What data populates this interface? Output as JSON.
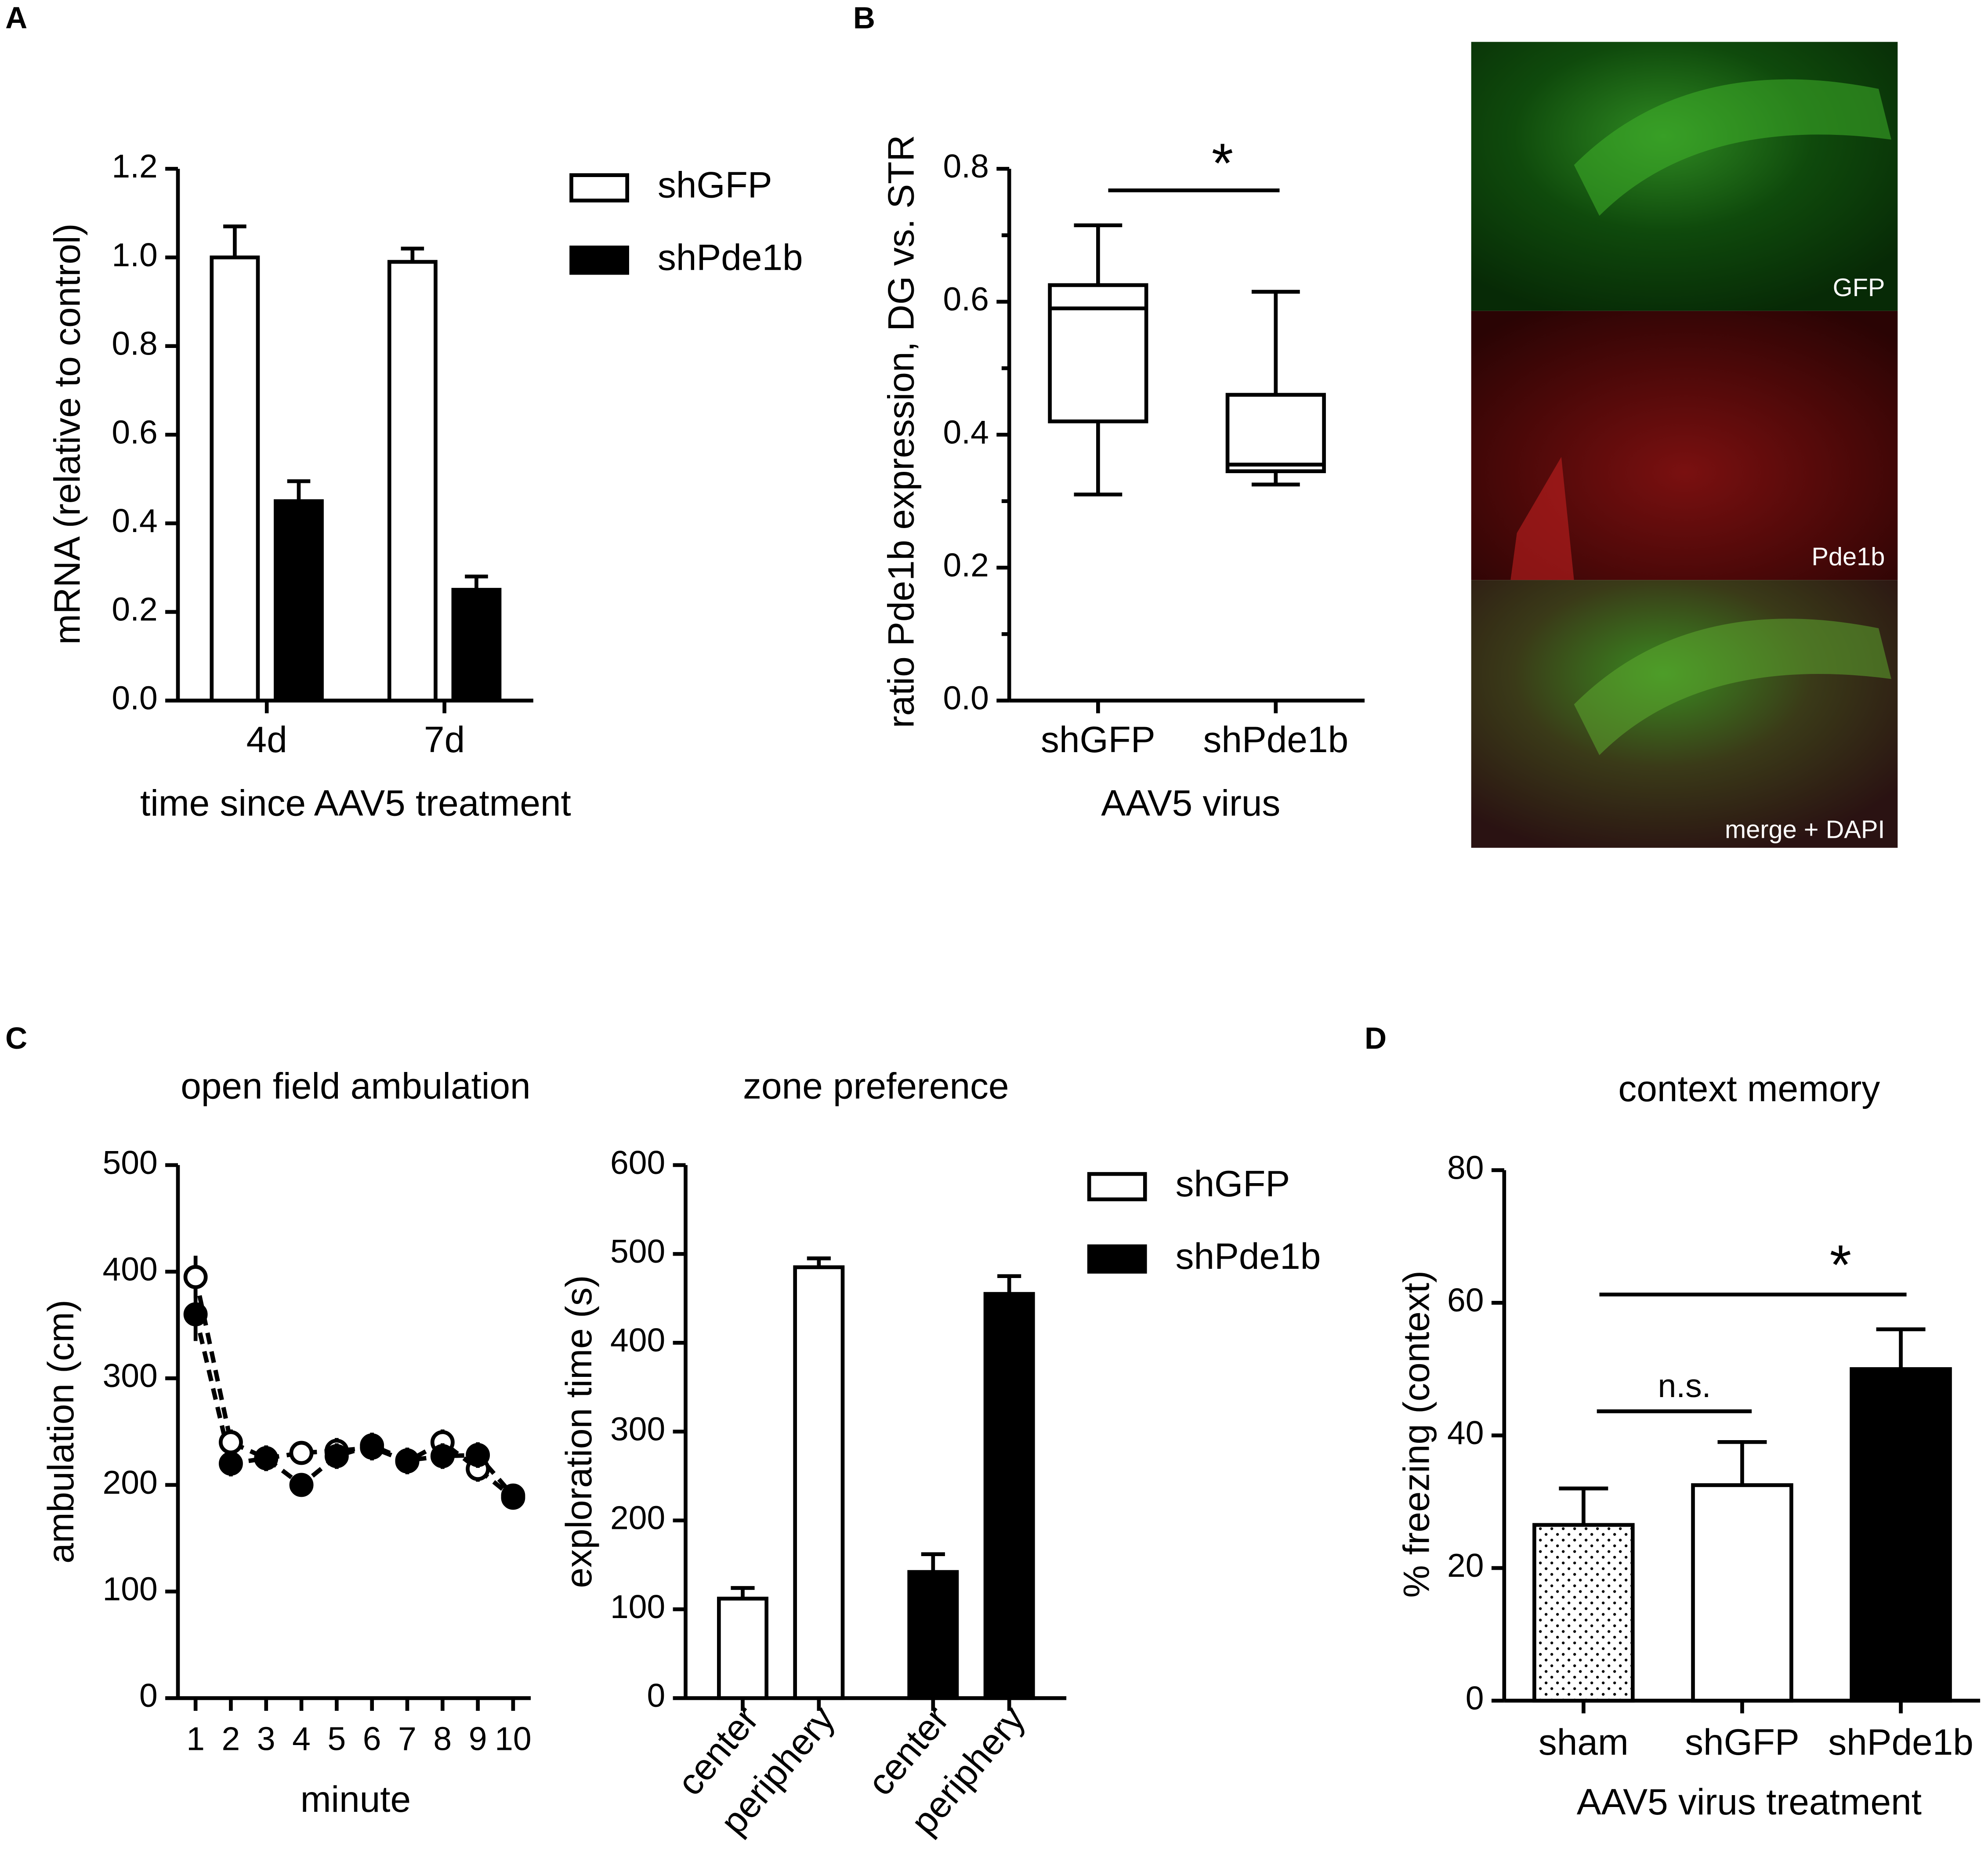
{
  "panel_labels": [
    "A",
    "B",
    "C",
    "D"
  ],
  "image_labels": [
    "GFP",
    "Pde1b",
    "merge + DAPI"
  ],
  "chart_data": [
    {
      "type": "bar",
      "categories": [
        "4d",
        "7d"
      ],
      "series": [
        {
          "name": "shGFP",
          "color": "#ffffff",
          "values": [
            1.0,
            0.99
          ],
          "errors": [
            0.07,
            0.03
          ]
        },
        {
          "name": "shPde1b",
          "color": "#000000",
          "values": [
            0.45,
            0.25
          ],
          "errors": [
            0.045,
            0.03
          ]
        }
      ],
      "ylim": [
        0,
        1.2
      ],
      "yticks": [
        {
          "value": 0,
          "label": "0.0"
        },
        0.2,
        0.4,
        0.6,
        0.8,
        {
          "value": 1,
          "label": "1.0"
        },
        1.2
      ],
      "y_label": "mRNA (relative to control)",
      "x_label": "time since AAV5 treatment",
      "legend": "right"
    },
    {
      "type": "box",
      "categories": [
        "shGFP",
        "shPde1b"
      ],
      "boxes": [
        {
          "min": 0.31,
          "q1": 0.42,
          "median": 0.59,
          "q3": 0.625,
          "max": 0.715
        },
        {
          "min": 0.325,
          "q1": 0.345,
          "median": 0.355,
          "q3": 0.46,
          "max": 0.615
        }
      ],
      "ylim": [
        0,
        0.8
      ],
      "yticks": [
        {
          "value": 0,
          "label": "0.0"
        },
        0.2,
        0.4,
        0.6,
        0.8
      ],
      "minor_yticks": [
        0.1,
        0.3,
        0.5,
        0.7
      ],
      "y_label": "ratio Pde1b expression, DG vs. STR",
      "x_label": "AAV5 virus",
      "annotations": [
        "*"
      ]
    },
    {
      "type": "line",
      "title": "open field ambulation",
      "x": [
        1,
        2,
        3,
        4,
        5,
        6,
        7,
        8,
        9,
        10
      ],
      "series": [
        {
          "name": "shGFP",
          "color": "#000000",
          "marker_fill": "#ffffff",
          "linestyle": "dashed",
          "values": [
            395,
            240,
            225,
            230,
            232,
            235,
            222,
            240,
            215,
            188
          ],
          "errors": [
            20,
            12,
            12,
            10,
            12,
            12,
            12,
            12,
            12,
            10
          ]
        },
        {
          "name": "shPde1b",
          "color": "#000000",
          "marker_fill": "#000000",
          "linestyle": "dashed",
          "values": [
            360,
            220,
            225,
            200,
            227,
            237,
            223,
            227,
            228,
            190
          ],
          "errors": [
            25,
            12,
            12,
            10,
            12,
            12,
            12,
            12,
            12,
            10
          ]
        }
      ],
      "xlim": [
        0.5,
        10.5
      ],
      "xticks": [
        1,
        2,
        3,
        4,
        5,
        6,
        7,
        8,
        9,
        10
      ],
      "ylim": [
        0,
        500
      ],
      "yticks": [
        0,
        100,
        200,
        300,
        400,
        500
      ],
      "x_label": "minute",
      "y_label": "ambulation (cm)"
    },
    {
      "type": "bar",
      "title": "zone preference",
      "categories": [
        "center",
        "periphery"
      ],
      "series": [
        {
          "name": "shGFP",
          "color": "#ffffff",
          "values": [
            112,
            485
          ],
          "errors": [
            12,
            10
          ]
        },
        {
          "name": "shPde1b",
          "color": "#000000",
          "values": [
            142,
            455
          ],
          "errors": [
            20,
            20
          ]
        }
      ],
      "ylim": [
        0,
        600
      ],
      "yticks": [
        0,
        100,
        200,
        300,
        400,
        500,
        600
      ],
      "y_label": "exploration time (s)",
      "legend": "right"
    },
    {
      "type": "bar",
      "title": "context memory",
      "categories": [
        "sham",
        "shGFP",
        "shPde1b"
      ],
      "values": [
        26.5,
        32.5,
        50
      ],
      "errors": [
        5.5,
        6.5,
        6
      ],
      "colors": [
        "#ffffff",
        "#ffffff",
        "#000000"
      ],
      "patterns": [
        "dots",
        null,
        null
      ],
      "ylim": [
        0,
        80
      ],
      "yticks": [
        0,
        20,
        40,
        60,
        80
      ],
      "y_label": "% freezing (context)",
      "x_label": "AAV5 virus treatment",
      "annotations": [
        "n.s.",
        "*"
      ]
    }
  ]
}
